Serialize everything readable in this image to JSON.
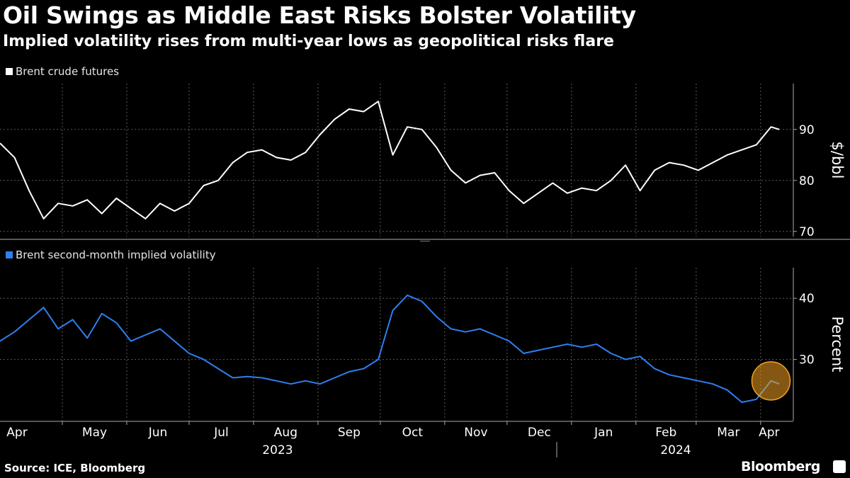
{
  "title": "Oil Swings as Middle East Risks Bolster Volatility",
  "subtitle": "Implied volatility rises from multi-year lows as geopolitical risks flare",
  "source": "Source: ICE, Bloomberg",
  "brand": "Bloomberg",
  "colors": {
    "background": "#000000",
    "brent": "#ffffff",
    "vol": "#2e7ff0",
    "highlight": "#f0a020"
  },
  "chart_data": [
    {
      "type": "line",
      "legend": "Brent crude futures",
      "ylabel": "$/bbl",
      "ylim": [
        69,
        99
      ],
      "yticks": [
        70,
        80,
        90
      ],
      "x": [
        "2023-04-01",
        "2023-04-08",
        "2023-04-15",
        "2023-04-22",
        "2023-04-29",
        "2023-05-06",
        "2023-05-13",
        "2023-05-20",
        "2023-05-27",
        "2023-06-03",
        "2023-06-10",
        "2023-06-17",
        "2023-06-24",
        "2023-07-01",
        "2023-07-08",
        "2023-07-15",
        "2023-07-22",
        "2023-07-29",
        "2023-08-05",
        "2023-08-12",
        "2023-08-19",
        "2023-08-26",
        "2023-09-02",
        "2023-09-09",
        "2023-09-16",
        "2023-09-23",
        "2023-09-30",
        "2023-10-07",
        "2023-10-14",
        "2023-10-21",
        "2023-10-28",
        "2023-11-04",
        "2023-11-11",
        "2023-11-18",
        "2023-11-25",
        "2023-12-02",
        "2023-12-09",
        "2023-12-16",
        "2023-12-23",
        "2023-12-30",
        "2024-01-06",
        "2024-01-13",
        "2024-01-20",
        "2024-01-27",
        "2024-02-03",
        "2024-02-10",
        "2024-02-17",
        "2024-02-24",
        "2024-03-02",
        "2024-03-09",
        "2024-03-16",
        "2024-03-23",
        "2024-03-30",
        "2024-04-06",
        "2024-04-10"
      ],
      "values": [
        87.3,
        84.5,
        78.0,
        72.5,
        75.5,
        75.0,
        76.2,
        73.5,
        76.5,
        74.5,
        72.5,
        75.5,
        74.0,
        75.5,
        79.0,
        80.0,
        83.5,
        85.5,
        86.0,
        84.5,
        84.0,
        85.5,
        89.0,
        92.0,
        94.0,
        93.5,
        95.5,
        85.0,
        90.5,
        90.0,
        86.5,
        82.0,
        79.5,
        81.0,
        81.5,
        78.0,
        75.5,
        77.5,
        79.5,
        77.5,
        78.5,
        78.0,
        80.0,
        83.0,
        78.0,
        82.0,
        83.5,
        83.0,
        82.0,
        83.5,
        85.0,
        86.0,
        87.0,
        90.5,
        90.0
      ],
      "annotations": []
    },
    {
      "type": "line",
      "legend": "Brent second-month implied volatility",
      "ylabel": "Percent",
      "ylim": [
        20,
        45
      ],
      "yticks": [
        30,
        40
      ],
      "x": [
        "2023-04-01",
        "2023-04-08",
        "2023-04-15",
        "2023-04-22",
        "2023-04-29",
        "2023-05-06",
        "2023-05-13",
        "2023-05-20",
        "2023-05-27",
        "2023-06-03",
        "2023-06-10",
        "2023-06-17",
        "2023-06-24",
        "2023-07-01",
        "2023-07-08",
        "2023-07-15",
        "2023-07-22",
        "2023-07-29",
        "2023-08-05",
        "2023-08-12",
        "2023-08-19",
        "2023-08-26",
        "2023-09-02",
        "2023-09-09",
        "2023-09-16",
        "2023-09-23",
        "2023-09-30",
        "2023-10-07",
        "2023-10-14",
        "2023-10-21",
        "2023-10-28",
        "2023-11-04",
        "2023-11-11",
        "2023-11-18",
        "2023-11-25",
        "2023-12-02",
        "2023-12-09",
        "2023-12-16",
        "2023-12-23",
        "2023-12-30",
        "2024-01-06",
        "2024-01-13",
        "2024-01-20",
        "2024-01-27",
        "2024-02-03",
        "2024-02-10",
        "2024-02-17",
        "2024-02-24",
        "2024-03-02",
        "2024-03-09",
        "2024-03-16",
        "2024-03-23",
        "2024-03-30",
        "2024-04-06",
        "2024-04-10"
      ],
      "values": [
        33.0,
        34.5,
        36.5,
        38.5,
        35.0,
        36.5,
        33.5,
        37.5,
        36.0,
        33.0,
        34.0,
        35.0,
        33.0,
        31.0,
        30.0,
        28.5,
        27.0,
        27.2,
        27.0,
        26.5,
        26.0,
        26.5,
        26.0,
        27.0,
        28.0,
        28.5,
        30.0,
        38.0,
        40.5,
        39.5,
        37.0,
        35.0,
        34.5,
        35.0,
        34.0,
        33.0,
        31.0,
        31.5,
        32.0,
        32.5,
        32.0,
        32.5,
        31.0,
        30.0,
        30.5,
        28.5,
        27.5,
        27.0,
        26.5,
        26.0,
        25.0,
        23.0,
        23.5,
        26.5,
        26.0
      ],
      "annotations": [
        {
          "type": "circle",
          "at": "2024-04-06",
          "value": 26.5
        }
      ]
    }
  ],
  "x_axis": {
    "months": [
      "Apr",
      "May",
      "Jun",
      "Jul",
      "Aug",
      "Sep",
      "Oct",
      "Nov",
      "Dec",
      "Jan",
      "Feb",
      "Mar",
      "Apr"
    ],
    "years": [
      "2023",
      "2024"
    ]
  }
}
